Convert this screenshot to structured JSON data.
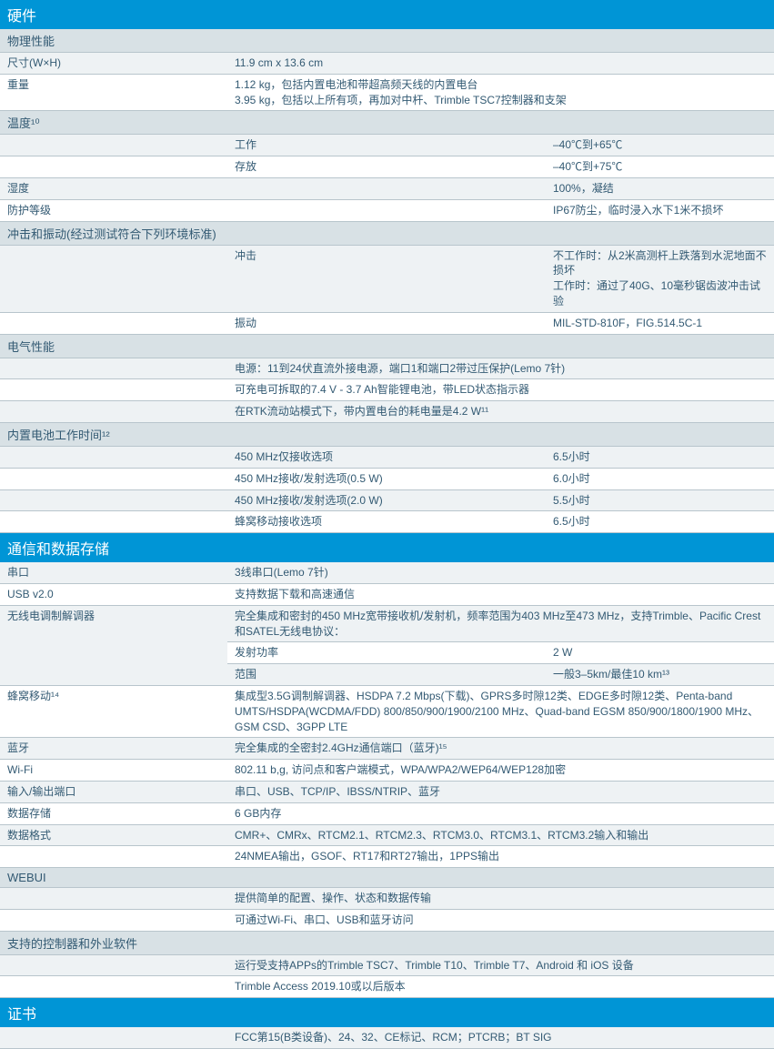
{
  "sections": {
    "hardware": {
      "title": "硬件"
    },
    "physical": {
      "title": "物理性能"
    },
    "dimensions": {
      "label": "尺寸(W×H)",
      "value": "11.9 cm x 13.6 cm"
    },
    "weight": {
      "label": "重量",
      "value": "1.12 kg，包括内置电池和带超高频天线的内置电台\n3.95 kg，包括以上所有项，再加对中杆、Trimble TSC7控制器和支架"
    },
    "temperature": {
      "label": "温度¹⁰"
    },
    "temp_work": {
      "label": "工作",
      "value": "–40℃到+65℃"
    },
    "temp_storage": {
      "label": "存放",
      "value": "–40℃到+75℃"
    },
    "humidity": {
      "label": "湿度",
      "value": "100%，凝结"
    },
    "protection": {
      "label": "防护等级",
      "value": "IP67防尘，临时浸入水下1米不损坏"
    },
    "shock": {
      "label": "冲击和振动(经过测试符合下列环境标准)"
    },
    "shock_impact": {
      "label": "冲击",
      "value": "不工作时：从2米高测杆上跌落到水泥地面不损坏\n工作时：通过了40G、10毫秒锯齿波冲击试验"
    },
    "shock_vibration": {
      "label": "振动",
      "value": "MIL-STD-810F，FIG.514.5C-1"
    },
    "electrical": {
      "title": "电气性能"
    },
    "power_source": {
      "value": "电源：11到24伏直流外接电源，端口1和端口2带过压保护(Lemo 7针)"
    },
    "battery": {
      "value": "可充电可拆取的7.4 V - 3.7 Ah智能锂电池，带LED状态指示器"
    },
    "rtk_power": {
      "value": "在RTK流动站模式下，带内置电台的耗电量是4.2 W¹¹"
    },
    "battery_time": {
      "title": "内置电池工作时间¹²"
    },
    "bt_450_rx": {
      "label": "450 MHz仅接收选项",
      "value": "6.5小时"
    },
    "bt_450_05w": {
      "label": "450 MHz接收/发射选项(0.5 W)",
      "value": "6.0小时"
    },
    "bt_450_20w": {
      "label": "450 MHz接收/发射选项(2.0 W)",
      "value": "5.5小时"
    },
    "bt_cellular": {
      "label": "蜂窝移动接收选项",
      "value": "6.5小时"
    },
    "comm": {
      "title": "通信和数据存储"
    },
    "serial": {
      "label": "串口",
      "value": "3线串口(Lemo 7针)"
    },
    "usb": {
      "label": "USB v2.0",
      "value": "支持数据下载和高速通信"
    },
    "radio_modem": {
      "label": "无线电调制解调器",
      "value": "完全集成和密封的450 MHz宽带接收机/发射机，频率范围为403 MHz至473 MHz，支持Trimble、Pacific Crest和SATEL无线电协议："
    },
    "tx_power": {
      "label": "发射功率",
      "value": "2 W"
    },
    "range": {
      "label": "范围",
      "value": "一般3–5km/最佳10 km¹³"
    },
    "cellular": {
      "label": "蜂窝移动¹⁴",
      "value": "集成型3.5G调制解调器、HSDPA 7.2 Mbps(下载)、GPRS多时隙12类、EDGE多时隙12类、Penta-band UMTS/HSDPA(WCDMA/FDD) 800/850/900/1900/2100 MHz、Quad-band EGSM 850/900/1800/1900 MHz、GSM CSD、3GPP LTE"
    },
    "bluetooth": {
      "label": "蓝牙",
      "value": "完全集成的全密封2.4GHz通信端口（蓝牙)¹⁵"
    },
    "wifi": {
      "label": "Wi-Fi",
      "value": "802.11 b,g, 访问点和客户端模式，WPA/WPA2/WEP64/WEP128加密"
    },
    "io_ports": {
      "label": "输入/输出端口",
      "value": "串口、USB、TCP/IP、IBSS/NTRIP、蓝牙"
    },
    "storage": {
      "label": "数据存储",
      "value": "6 GB内存"
    },
    "data_format": {
      "label": "数据格式",
      "value": "CMR+、CMRx、RTCM2.1、RTCM2.3、RTCM3.0、RTCM3.1、RTCM3.2输入和输出"
    },
    "nmea": {
      "value": "24NMEA输出，GSOF、RT17和RT27输出，1PPS输出"
    },
    "webui": {
      "title": "WEBUI"
    },
    "webui_config": {
      "value": "提供简单的配置、操作、状态和数据传输"
    },
    "webui_access": {
      "value": "可通过Wi-Fi、串口、USB和蓝牙访问"
    },
    "controllers": {
      "title": "支持的控制器和外业软件"
    },
    "ctrl_devices": {
      "value": "运行受支持APPs的Trimble TSC7、Trimble T10、Trimble T7、Android 和 iOS 设备"
    },
    "ctrl_access": {
      "value": "Trimble Access 2019.10或以后版本"
    },
    "cert": {
      "title": "证书"
    },
    "cert_list": {
      "value": "FCC第15(B类设备)、24、32、CE标记、RCM；PTCRB；BT SIG"
    }
  }
}
